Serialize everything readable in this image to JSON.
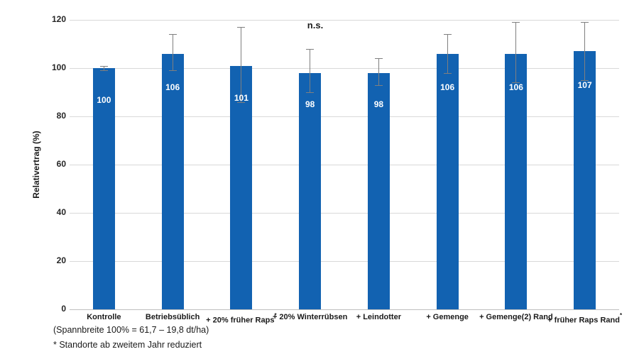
{
  "chart_data": {
    "type": "bar",
    "title": "",
    "ylabel": "Relativertrag (%)",
    "xlabel": "",
    "ylim": [
      0,
      120
    ],
    "yticks": [
      0,
      20,
      40,
      60,
      80,
      100,
      120
    ],
    "grid": true,
    "legend_position": "none",
    "annotation": "n.s.",
    "bar_color": "#1262B1",
    "error_bar_color": "#7f7f7f",
    "categories": [
      "Kontrolle",
      "Betriebsüblich",
      "+ 20% früher Raps",
      "+ 20% Winterrübsen",
      "+ Leindotter",
      "+ Gemenge",
      "+ Gemenge(2) Rand",
      "+ früher Raps Rand"
    ],
    "category_footnote_marker": [
      false,
      false,
      true,
      false,
      false,
      false,
      false,
      true
    ],
    "values": [
      100,
      106,
      101,
      98,
      98,
      106,
      106,
      107
    ],
    "error_plus": [
      1,
      8,
      16,
      10,
      6,
      8,
      13,
      12
    ],
    "error_minus": [
      1,
      7,
      15,
      8,
      5,
      8,
      12,
      12
    ]
  },
  "footnotes": {
    "spannbreite": "(Spannbreite 100% = 61,7 – 19,8 dt/ha)",
    "standorte": "* Standorte ab zweitem Jahr reduziert"
  }
}
